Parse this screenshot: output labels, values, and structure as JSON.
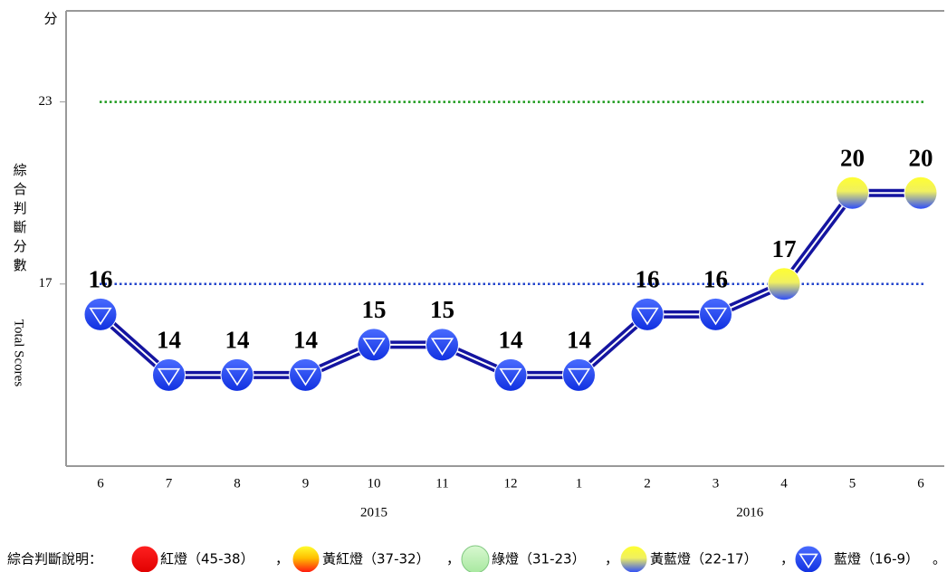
{
  "chart_data": {
    "type": "line",
    "ylabel_unit": "分",
    "ylabel_zh": "綜合判斷分數",
    "ylabel_en": "Total Scores",
    "categories": [
      "6",
      "7",
      "8",
      "9",
      "10",
      "11",
      "12",
      "1",
      "2",
      "3",
      "4",
      "5",
      "6"
    ],
    "years": [
      "2015",
      "2016"
    ],
    "values": [
      16,
      14,
      14,
      14,
      15,
      15,
      14,
      14,
      16,
      16,
      17,
      20,
      20
    ],
    "signals": [
      4,
      4,
      4,
      4,
      4,
      4,
      4,
      4,
      4,
      4,
      3,
      3,
      3
    ],
    "color": "#1414a0",
    "ylim": [
      11,
      26
    ],
    "yticks": [
      17,
      23
    ],
    "reference_lines": [
      {
        "value": 23,
        "color": "#1a9a1a"
      },
      {
        "value": 17,
        "color": "#2244cc"
      }
    ],
    "legend": {
      "title": "綜合判斷說明：",
      "separator": "，",
      "terminator": "。",
      "items": [
        {
          "label": "紅燈（45-38）",
          "style": "red"
        },
        {
          "label": "黃紅燈（37-32）",
          "style": "yellow-red"
        },
        {
          "label": "綠燈（31-23）",
          "style": "green"
        },
        {
          "label": "黃藍燈（22-17）",
          "style": "yellow-blue"
        },
        {
          "label": "藍燈（16-9）",
          "style": "blue"
        }
      ]
    }
  }
}
